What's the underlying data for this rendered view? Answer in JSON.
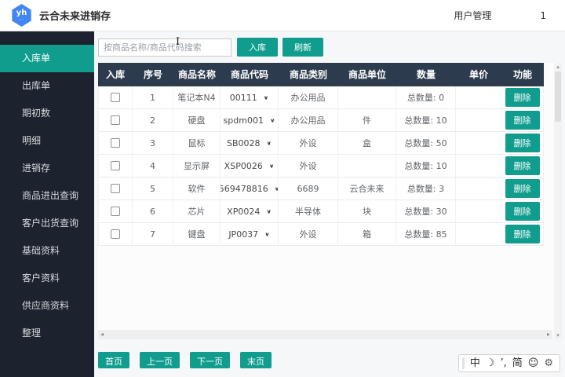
{
  "header": {
    "logo_text": "yh",
    "logo_dots": "...",
    "title": "云合未来进销存",
    "user_menu_label": "用户管理",
    "user_count": "1"
  },
  "sidebar": {
    "items": [
      {
        "label": "入库单",
        "active": true
      },
      {
        "label": "出库单"
      },
      {
        "label": "期初数"
      },
      {
        "label": "明细"
      },
      {
        "label": "进销存"
      },
      {
        "label": "商品进出查询"
      },
      {
        "label": "客户出货查询"
      },
      {
        "label": "基础资料"
      },
      {
        "label": "客户资料"
      },
      {
        "label": "供应商资料"
      },
      {
        "label": "整理"
      }
    ]
  },
  "toolbar": {
    "search_placeholder": "按商品名称/商品代码搜索",
    "stock_in_button": "入库",
    "refresh_button": "刷新"
  },
  "table": {
    "headers": [
      "入库",
      "序号",
      "商品名称",
      "商品代码",
      "商品类别",
      "商品单位",
      "数量",
      "单价",
      "功能"
    ],
    "rows": [
      {
        "no": "1",
        "name": "笔记本N4",
        "code": "00111",
        "category": "办公用品",
        "unit": "",
        "quantity": "总数量: 0",
        "price": "",
        "action": "删除"
      },
      {
        "no": "2",
        "name": "硬盘",
        "code": "spdm001",
        "category": "办公用品",
        "unit": "件",
        "quantity": "总数量: 10",
        "price": "",
        "action": "删除"
      },
      {
        "no": "3",
        "name": "鼠标",
        "code": "SB0028",
        "category": "外设",
        "unit": "盒",
        "quantity": "总数量: 50",
        "price": "",
        "action": "删除"
      },
      {
        "no": "4",
        "name": "显示屏",
        "code": "XSP0026",
        "category": "外设",
        "unit": "",
        "quantity": "总数量: 10",
        "price": "",
        "action": "删除"
      },
      {
        "no": "5",
        "name": "软件",
        "code": "569478816",
        "category": "6689",
        "unit": "云合未来",
        "quantity": "总数量: 3",
        "price": "",
        "action": "删除"
      },
      {
        "no": "6",
        "name": "芯片",
        "code": "XP0024",
        "category": "半导体",
        "unit": "块",
        "quantity": "总数量: 30",
        "price": "",
        "action": "删除"
      },
      {
        "no": "7",
        "name": "键盘",
        "code": "JP0037",
        "category": "外设",
        "unit": "箱",
        "quantity": "总数量: 85",
        "price": "",
        "action": "删除"
      }
    ]
  },
  "pagination": {
    "first": "首页",
    "prev": "上一页",
    "next": "下一页",
    "last": "末页"
  },
  "ime_bar": {
    "lang": "中",
    "punctuation": "’,",
    "charset": "简"
  },
  "icons": {
    "chevron_down": "∨",
    "moon": "☽",
    "smiley": "☺",
    "gear": "⚙",
    "scroll_up": "▴",
    "scroll_down": "▾",
    "scroll_left": "◂",
    "scroll_right": "▸"
  },
  "colors": {
    "accent": "#109D8E",
    "navy": "#2D3B4E",
    "sidebar_bg": "#1C222E",
    "logo_blue": "#4285F4",
    "main_bg": "#F6F7F8"
  }
}
